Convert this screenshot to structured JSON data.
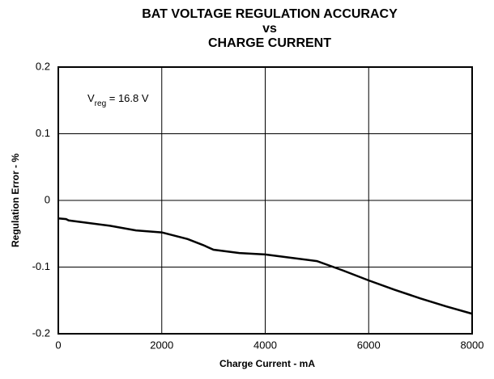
{
  "chart_data": {
    "type": "line",
    "title": [
      "BAT VOLTAGE REGULATION ACCURACY",
      "vs",
      "CHARGE CURRENT"
    ],
    "annotation": [
      "V",
      "reg",
      " = 16.8 V"
    ],
    "x_label": "Charge Current - mA",
    "y_label": "Regulation Error - %",
    "x": [
      0,
      150,
      200,
      500,
      1000,
      1500,
      2000,
      2500,
      2800,
      3000,
      3500,
      4000,
      4500,
      5000,
      5500,
      6000,
      6500,
      7000,
      7500,
      8000
    ],
    "series": [
      {
        "name": "Regulation Error",
        "color": "#000000",
        "values": [
          -0.027,
          -0.028,
          -0.03,
          -0.033,
          -0.038,
          -0.045,
          -0.048,
          -0.058,
          -0.067,
          -0.074,
          -0.079,
          -0.081,
          -0.086,
          -0.091,
          -0.105,
          -0.12,
          -0.134,
          -0.147,
          -0.159,
          -0.17
        ]
      }
    ],
    "xlim": [
      0,
      8000
    ],
    "xticks": [
      0,
      2000,
      4000,
      6000,
      8000
    ],
    "ylim": [
      -0.2,
      0.2
    ],
    "yticks": [
      0.2,
      0.1,
      0,
      -0.1,
      -0.2
    ],
    "grid": true
  }
}
